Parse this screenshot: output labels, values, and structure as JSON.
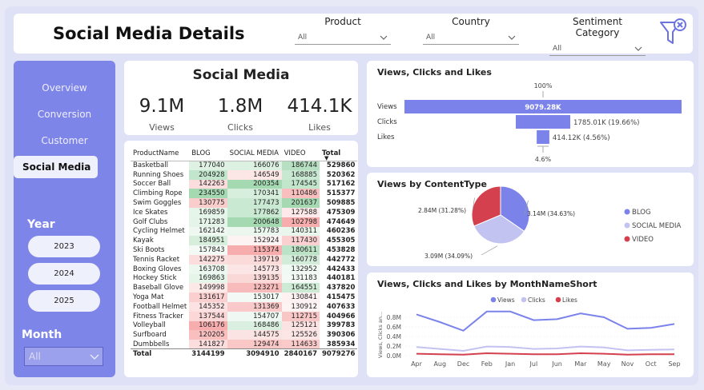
{
  "header": {
    "title": "Social Media Details"
  },
  "slicers": [
    {
      "label": "Product",
      "value": "All"
    },
    {
      "label": "Country",
      "value": "All"
    },
    {
      "label": "Sentiment Category",
      "value": "All"
    }
  ],
  "nav": {
    "items": [
      "Overview",
      "Conversion",
      "Customer",
      "Social Media"
    ]
  },
  "year": {
    "label": "Year",
    "options": [
      "2023",
      "2024",
      "2025"
    ]
  },
  "month": {
    "label": "Month",
    "value": "All"
  },
  "kpi": {
    "title": "Social Media",
    "items": [
      {
        "value": "9.1M",
        "label": "Views"
      },
      {
        "value": "1.8M",
        "label": "Clicks"
      },
      {
        "value": "414.1K",
        "label": "Likes"
      }
    ]
  },
  "matrix": {
    "headers": [
      "ProductName",
      "BLOG",
      "SOCIAL MEDIA",
      "VIDEO",
      "Total"
    ],
    "rows": [
      [
        "Basketball",
        "177040",
        "166076",
        "186744",
        "529860"
      ],
      [
        "Running Shoes",
        "204928",
        "146549",
        "168885",
        "520362"
      ],
      [
        "Soccer Ball",
        "142263",
        "200354",
        "174545",
        "517162"
      ],
      [
        "Climbing Rope",
        "234550",
        "170341",
        "110486",
        "515377"
      ],
      [
        "Swim Goggles",
        "130775",
        "177473",
        "201637",
        "509885"
      ],
      [
        "Ice Skates",
        "169859",
        "177862",
        "127588",
        "475309"
      ],
      [
        "Golf Clubs",
        "171283",
        "200648",
        "102798",
        "474649"
      ],
      [
        "Cycling Helmet",
        "162142",
        "157783",
        "140311",
        "460236"
      ],
      [
        "Kayak",
        "184951",
        "152924",
        "117430",
        "455305"
      ],
      [
        "Ski Boots",
        "157843",
        "115374",
        "180611",
        "453828"
      ],
      [
        "Tennis Racket",
        "142275",
        "139719",
        "160778",
        "442772"
      ],
      [
        "Boxing Gloves",
        "163708",
        "145773",
        "132952",
        "442433"
      ],
      [
        "Hockey Stick",
        "169863",
        "139135",
        "131183",
        "440181"
      ],
      [
        "Baseball Glove",
        "149998",
        "123271",
        "164551",
        "437820"
      ],
      [
        "Yoga Mat",
        "131617",
        "153017",
        "130841",
        "415475"
      ],
      [
        "Football Helmet",
        "145352",
        "131369",
        "130912",
        "407633"
      ],
      [
        "Fitness Tracker",
        "137544",
        "154707",
        "112715",
        "404966"
      ],
      [
        "Volleyball",
        "106176",
        "168486",
        "125121",
        "399783"
      ],
      [
        "Surfboard",
        "120205",
        "144575",
        "125526",
        "390306"
      ],
      [
        "Dumbbells",
        "141827",
        "129474",
        "114633",
        "385934"
      ]
    ],
    "total": [
      "Total",
      "3144199",
      "3094910",
      "2840167",
      "9079276"
    ]
  },
  "funnel": {
    "title": "Views, Clicks and Likes",
    "top_pct": "100%",
    "bottom_pct": "4.6%",
    "stages": [
      {
        "label": "Views",
        "value": 9079.28,
        "text": "9079.28K"
      },
      {
        "label": "Clicks",
        "value": 1785.01,
        "text": "1785.01K (19.66%)"
      },
      {
        "label": "Likes",
        "value": 414.12,
        "text": "414.12K (4.56%)"
      }
    ],
    "color": "#7b83eb"
  },
  "chart_data": [
    {
      "type": "pie",
      "title": "Views by ContentType",
      "slices": [
        {
          "name": "BLOG",
          "value": 3.14,
          "label": "3.14M (34.63%)",
          "color": "#7b83eb"
        },
        {
          "name": "SOCIAL MEDIA",
          "value": 3.09,
          "label": "3.09M (34.09%)",
          "color": "#c3c3f2"
        },
        {
          "name": "VIDEO",
          "value": 2.84,
          "label": "2.84M (31.28%)",
          "color": "#d4404e"
        }
      ],
      "legend": "right"
    },
    {
      "type": "line",
      "title": "Views, Clicks and Likes by MonthNameShort",
      "ylabel": "Views, Clicks an...",
      "categories": [
        "Apr",
        "Aug",
        "Dec",
        "Feb",
        "Jan",
        "Jul",
        "Jun",
        "Mar",
        "May",
        "Nov",
        "Oct",
        "Sep"
      ],
      "yticks": [
        "0.0M",
        "0.2M",
        "0.4M",
        "0.6M",
        "0.8M"
      ],
      "ylim": [
        0,
        0.9
      ],
      "series": [
        {
          "name": "Views",
          "color": "#7b83eb",
          "values": [
            0.86,
            0.7,
            0.52,
            0.92,
            0.92,
            0.74,
            0.76,
            0.88,
            0.8,
            0.56,
            0.58,
            0.66
          ]
        },
        {
          "name": "Clicks",
          "color": "#c3c3f2",
          "values": [
            0.18,
            0.14,
            0.1,
            0.19,
            0.18,
            0.14,
            0.15,
            0.19,
            0.17,
            0.11,
            0.12,
            0.13
          ]
        },
        {
          "name": "Likes",
          "color": "#d4404e",
          "values": [
            0.04,
            0.03,
            0.02,
            0.05,
            0.04,
            0.03,
            0.03,
            0.05,
            0.04,
            0.02,
            0.03,
            0.03
          ]
        }
      ],
      "legend": "top"
    }
  ]
}
